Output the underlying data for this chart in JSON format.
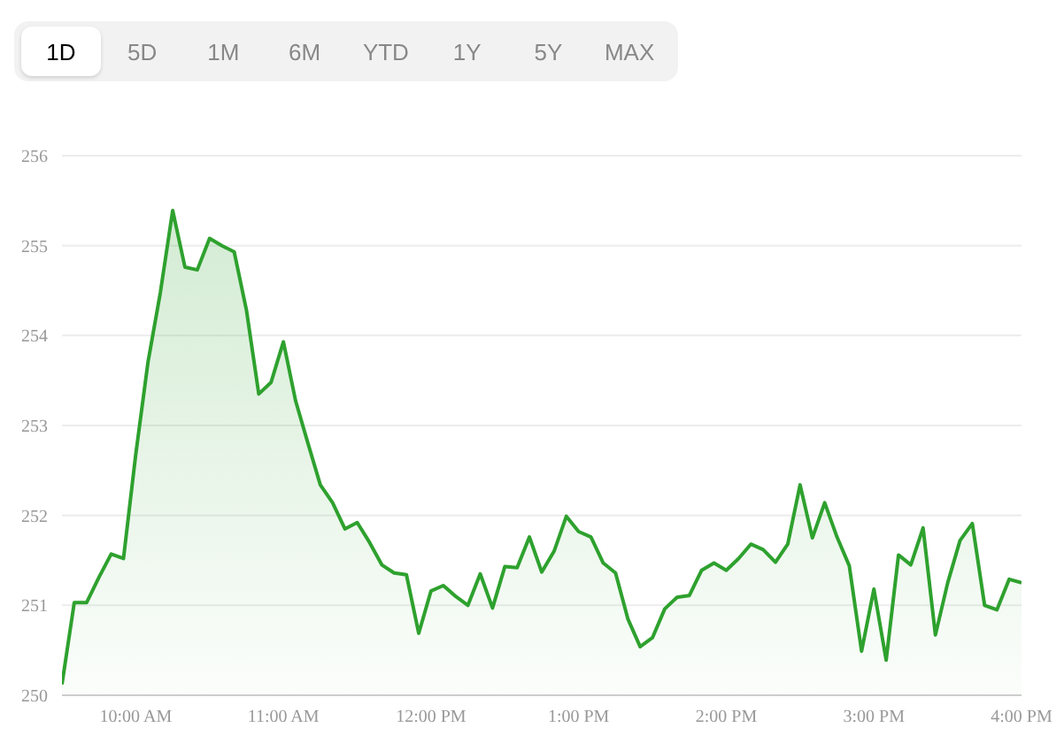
{
  "chart_data": {
    "type": "area",
    "annotations": [
      "1D",
      "5D",
      "1M",
      "6M",
      "YTD",
      "1Y",
      "5Y",
      "MAX"
    ],
    "x": [
      9.5,
      9.5833,
      9.6667,
      9.75,
      9.8333,
      9.9167,
      10,
      10.0833,
      10.1667,
      10.25,
      10.3333,
      10.4167,
      10.5,
      10.5833,
      10.6667,
      10.75,
      10.8333,
      10.9167,
      11,
      11.0833,
      11.1667,
      11.25,
      11.3333,
      11.4167,
      11.5,
      11.5833,
      11.6667,
      11.75,
      11.8333,
      11.9167,
      12,
      12.0833,
      12.1667,
      12.25,
      12.3333,
      12.4167,
      12.5,
      12.5833,
      12.6667,
      12.75,
      12.8333,
      12.9167,
      13,
      13.0833,
      13.1667,
      13.25,
      13.3333,
      13.4167,
      13.5,
      13.5833,
      13.6667,
      13.75,
      13.8333,
      13.9167,
      14,
      14.0833,
      14.1667,
      14.25,
      14.3333,
      14.4167,
      14.5,
      14.5833,
      14.6667,
      14.75,
      14.8333,
      14.9167,
      15,
      15.0833,
      15.1667,
      15.25,
      15.3333,
      15.4167,
      15.5,
      15.5833,
      15.6667,
      15.75,
      15.8333,
      15.9167,
      16
    ],
    "series": [
      {
        "color": "#2ea12e",
        "values": [
          250.12,
          251.03,
          251.03,
          251.31,
          251.57,
          251.52,
          252.68,
          253.71,
          254.48,
          255.39,
          254.76,
          254.73,
          255.08,
          255.0,
          254.93,
          254.28,
          253.35,
          253.48,
          253.93,
          253.27,
          252.8,
          252.34,
          252.14,
          251.85,
          251.92,
          251.7,
          251.45,
          251.36,
          251.34,
          250.69,
          251.16,
          251.22,
          251.1,
          251.0,
          251.35,
          250.97,
          251.43,
          251.42,
          251.76,
          251.37,
          251.6,
          251.99,
          251.82,
          251.76,
          251.47,
          251.36,
          250.85,
          250.54,
          250.64,
          250.96,
          251.09,
          251.11,
          251.39,
          251.47,
          251.39,
          251.52,
          251.68,
          251.62,
          251.48,
          251.68,
          252.34,
          251.75,
          252.14,
          251.76,
          251.44,
          250.49,
          251.18,
          250.39,
          251.56,
          251.45,
          251.86,
          250.67,
          251.25,
          251.72,
          251.91,
          251.0,
          250.95,
          251.29,
          251.25
        ]
      }
    ],
    "xlim": [
      9.5,
      16
    ],
    "xticks": [
      {
        "value": 10,
        "label": "10:00 AM"
      },
      {
        "value": 11,
        "label": "11:00 AM"
      },
      {
        "value": 12,
        "label": "12:00 PM"
      },
      {
        "value": 13,
        "label": "1:00 PM"
      },
      {
        "value": 14,
        "label": "2:00 PM"
      },
      {
        "value": 15,
        "label": "3:00 PM"
      },
      {
        "value": 16,
        "label": "4:00 PM"
      }
    ],
    "ylim": [
      250,
      256
    ],
    "yticks": [
      250,
      251,
      252,
      253,
      254,
      255,
      256
    ],
    "grid": "y"
  }
}
